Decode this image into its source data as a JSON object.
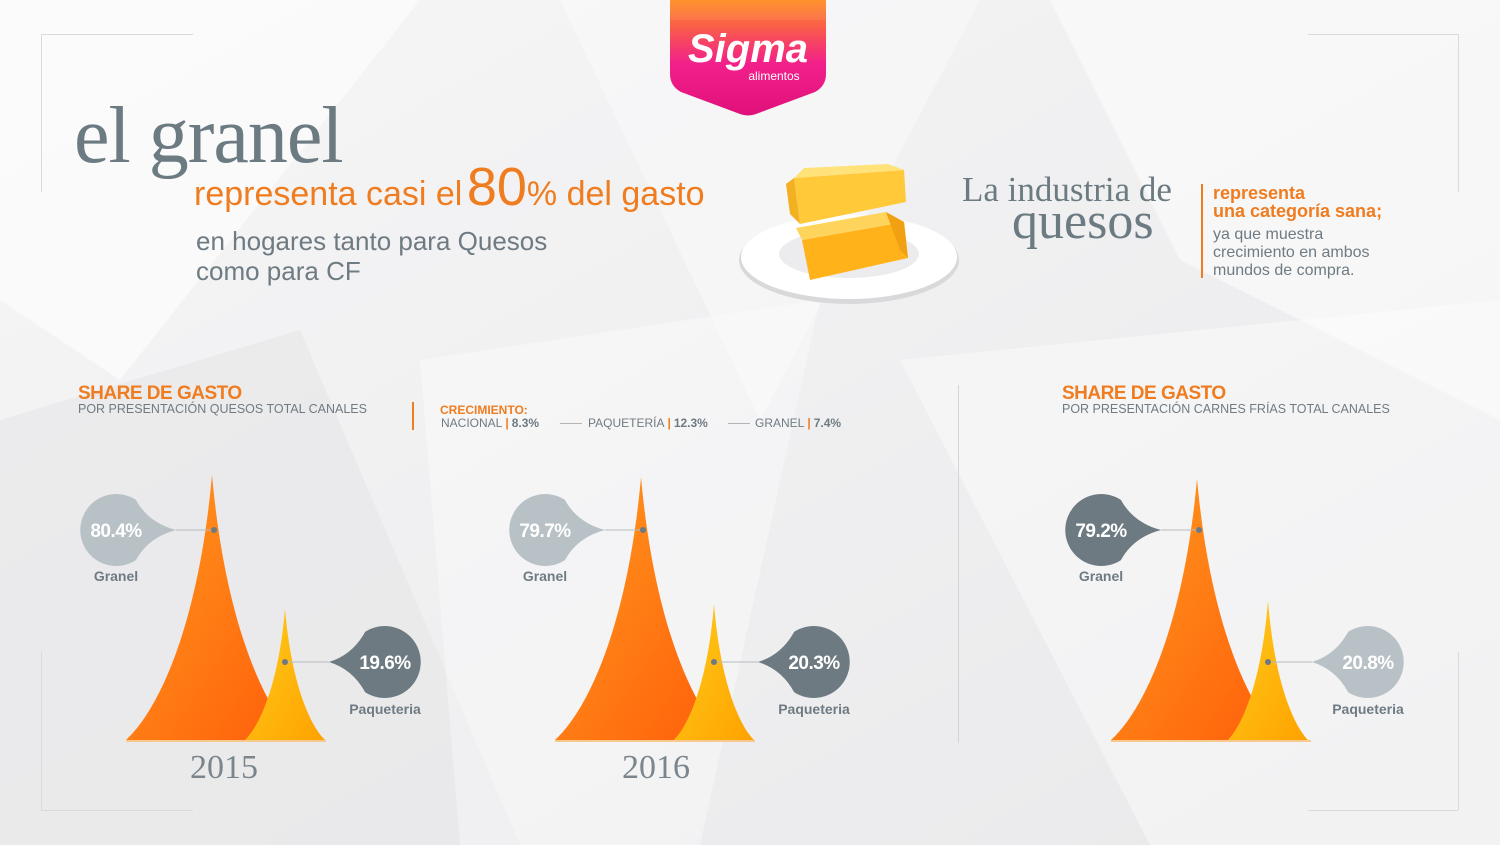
{
  "brand": {
    "name": "Sigma",
    "sub": "alimentos"
  },
  "headline": {
    "big": "el granel",
    "orange_prefix": "representa casi el",
    "orange_value": "80",
    "orange_suffix": "% del gasto",
    "gray_line1": "en hogares tanto para Quesos",
    "gray_line2": "como para CF"
  },
  "industry": {
    "line1": "La industria de",
    "line2": "quesos",
    "orange_line1": "representa",
    "orange_line2": "una categoría sana;",
    "gray_line1": "ya que muestra",
    "gray_line2": "crecimiento en ambos",
    "gray_line3": "mundos de compra."
  },
  "section_quesos": {
    "title": "SHARE DE GASTO",
    "subtitle": "POR PRESENTACIÓN QUESOS TOTAL CANALES"
  },
  "growth": {
    "label": "CRECIMIENTO:",
    "items": [
      {
        "name": "NACIONAL",
        "value": "8.3%"
      },
      {
        "name": "PAQUETERÍA",
        "value": "12.3%"
      },
      {
        "name": "GRANEL",
        "value": "7.4%"
      }
    ]
  },
  "section_cf": {
    "title": "SHARE DE GASTO",
    "subtitle": "POR PRESENTACIÓN CARNES FRÍAS TOTAL CANALES"
  },
  "colors": {
    "granel": "#ff7a14",
    "paqueteria": "#ffb300",
    "bubble_light": "#b8c1c6",
    "bubble_dark": "#6d7a81",
    "accent": "#f07c20"
  },
  "chart_data": [
    {
      "type": "area",
      "title": "2015",
      "series": [
        {
          "name": "Granel",
          "value": 80.4,
          "label": "80.4%"
        },
        {
          "name": "Paqueteria",
          "value": 19.6,
          "label": "19.6%"
        }
      ]
    },
    {
      "type": "area",
      "title": "2016",
      "series": [
        {
          "name": "Granel",
          "value": 79.7,
          "label": "79.7%"
        },
        {
          "name": "Paqueteria",
          "value": 20.3,
          "label": "20.3%"
        }
      ]
    },
    {
      "type": "area",
      "title": "",
      "series": [
        {
          "name": "Granel",
          "value": 79.2,
          "label": "79.2%"
        },
        {
          "name": "Paqueteria",
          "value": 20.8,
          "label": "20.8%"
        }
      ]
    }
  ]
}
